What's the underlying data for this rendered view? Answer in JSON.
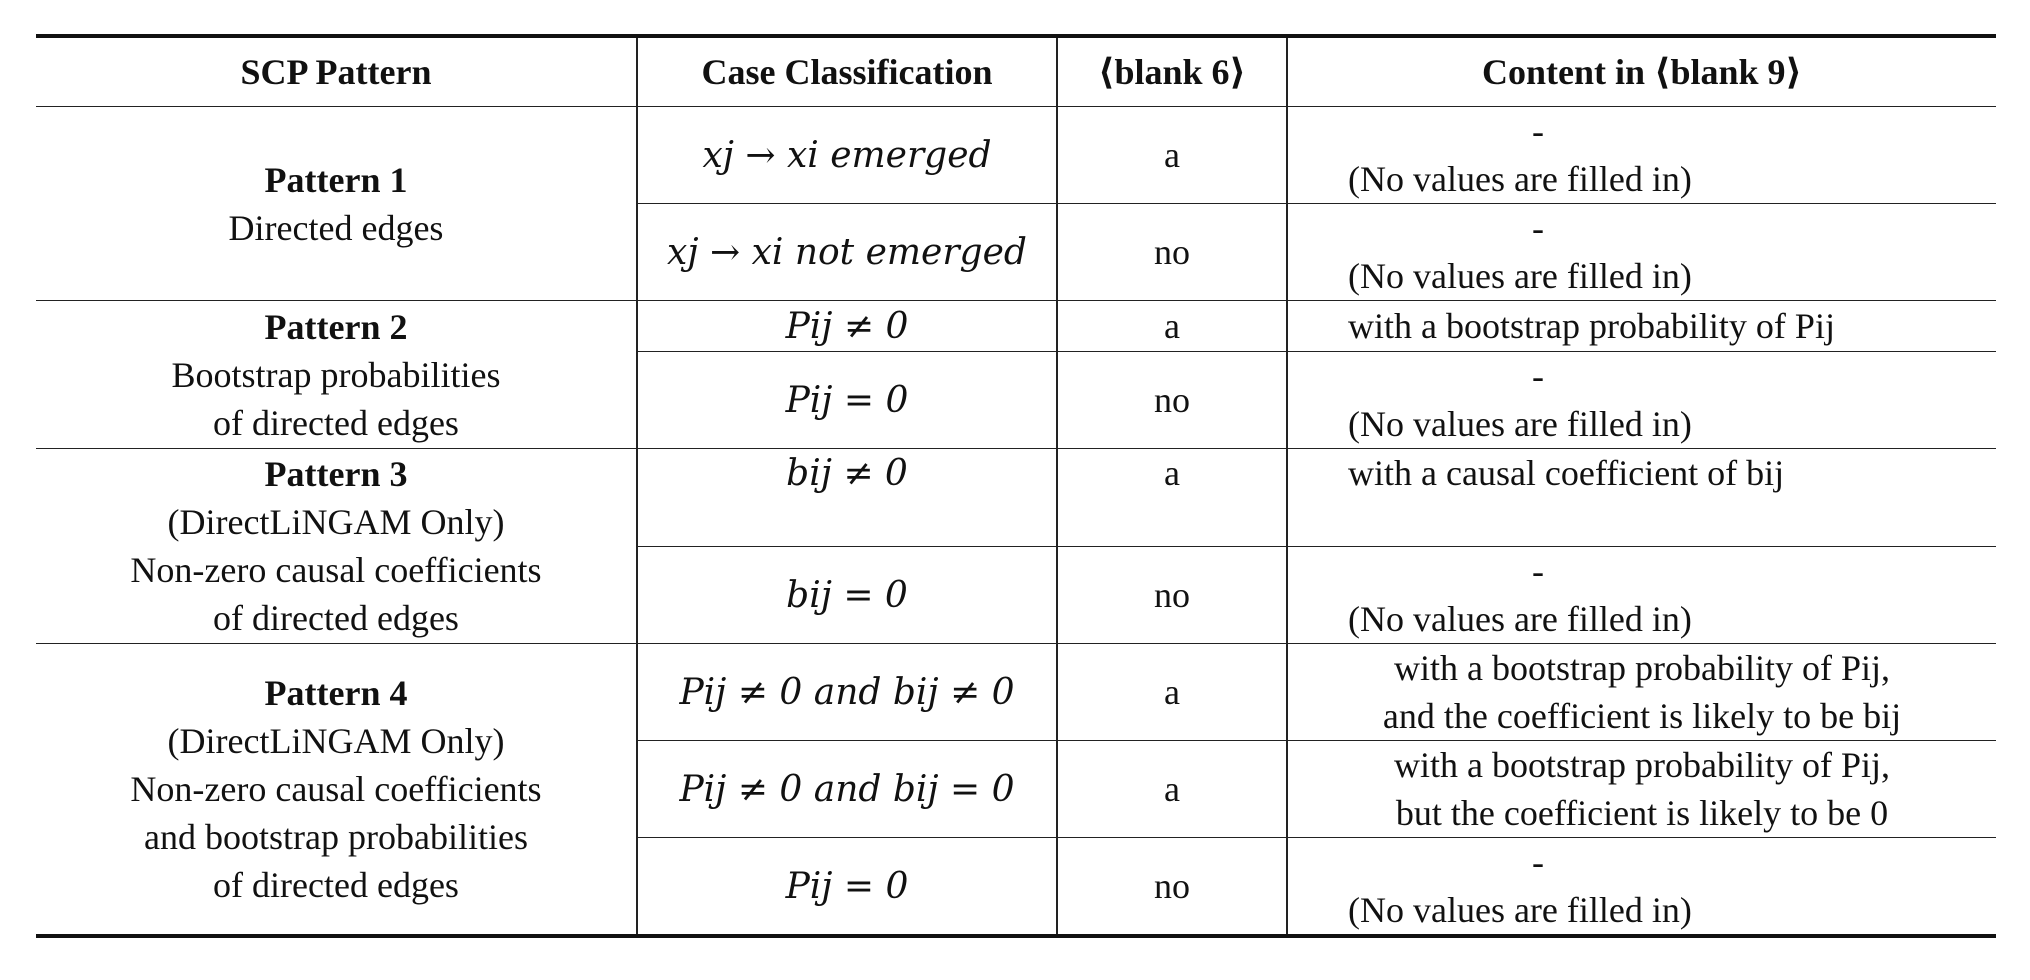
{
  "headers": {
    "scp_pattern": "SCP Pattern",
    "case_classification": "Case Classification",
    "blank6": "⟨blank 6⟩",
    "content_blank9": "Content in ⟨blank 9⟩"
  },
  "patterns": [
    {
      "title": "Pattern 1",
      "lines": [
        "Directed edges"
      ]
    },
    {
      "title": "Pattern 2",
      "lines": [
        "Bootstrap probabilities",
        "of directed edges"
      ]
    },
    {
      "title": "Pattern 3",
      "lines": [
        "(DirectLiNGAM Only)",
        "Non-zero causal coefficients",
        "of directed edges"
      ]
    },
    {
      "title": "Pattern 4",
      "lines": [
        "(DirectLiNGAM Only)",
        "Non-zero causal coefficients",
        "and bootstrap probabilities",
        "of directed edges"
      ]
    }
  ],
  "rows": [
    {
      "case": "xj → xi emerged",
      "blank6": "a",
      "content_dash": "-",
      "content": "(No values are filled in)"
    },
    {
      "case": "xj → xi not emerged",
      "blank6": "no",
      "content_dash": "-",
      "content": "(No values are filled in)"
    },
    {
      "case": "Pij ≠ 0",
      "blank6": "a",
      "content": "with a bootstrap probability of Pij"
    },
    {
      "case": "Pij = 0",
      "blank6": "no",
      "content_dash": "-",
      "content": "(No values are filled in)"
    },
    {
      "case": "bij ≠ 0",
      "blank6": "a",
      "content": "with a causal coefficient of bij"
    },
    {
      "case": "bij = 0",
      "blank6": "no",
      "content_dash": "-",
      "content": "(No values are filled in)"
    },
    {
      "case": "Pij ≠ 0 and bij ≠ 0",
      "blank6": "a",
      "content": "with a bootstrap probability of Pij,",
      "content2": "and the coefficient is likely to be bij"
    },
    {
      "case": "Pij ≠ 0 and bij = 0",
      "blank6": "a",
      "content": "with a bootstrap probability of Pij,",
      "content2": "but the coefficient is likely to be 0"
    },
    {
      "case": "Pij = 0",
      "blank6": "no",
      "content_dash": "-",
      "content": "(No values are filled in)"
    }
  ]
}
